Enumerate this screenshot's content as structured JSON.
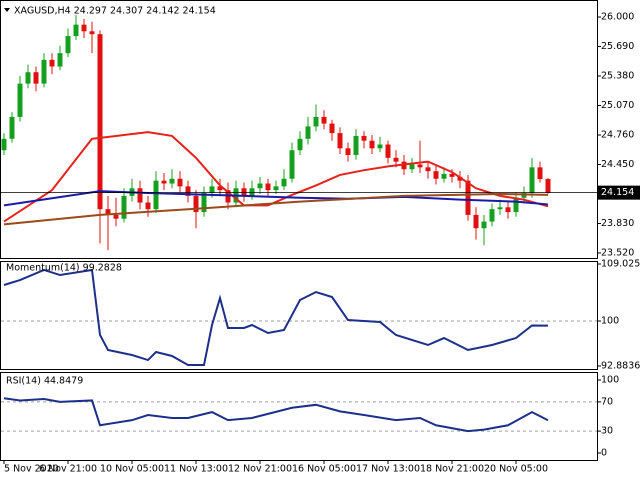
{
  "chart_data": [
    {
      "type": "candlestick",
      "title": "XAGUSD,H4  24.297 24.307 24.142 24.154",
      "categories": [
        "5 Nov 2020",
        null,
        null,
        null,
        null,
        null,
        null,
        null,
        "6 Nov 21:00",
        null,
        null,
        null,
        null,
        null,
        null,
        null,
        "10 Nov 05:00",
        null,
        null,
        null,
        null,
        null,
        null,
        null,
        "11 Nov 13:00",
        null,
        null,
        null,
        null,
        null,
        null,
        null,
        "12 Nov 21:00",
        null,
        null,
        null,
        null,
        null,
        null,
        null,
        "16 Nov 05:00",
        null,
        null,
        null,
        null,
        null,
        null,
        null,
        "17 Nov 13:00",
        null,
        null,
        null,
        null,
        null,
        null,
        null,
        "18 Nov 21:00",
        null,
        null,
        null,
        null,
        null,
        null,
        null,
        "20 Nov 05:00",
        null,
        null,
        null,
        null
      ],
      "open": [
        24.6,
        24.72,
        24.95,
        25.3,
        25.42,
        25.3,
        25.55,
        25.48,
        25.62,
        25.8,
        25.92,
        25.85,
        25.82,
        23.98,
        23.92,
        23.88,
        24.12,
        24.2,
        24.05,
        23.98,
        24.28,
        24.25,
        24.3,
        24.22,
        24.12,
        23.95,
        24.15,
        24.22,
        24.18,
        24.05,
        24.2,
        24.12,
        24.2,
        24.25,
        24.18,
        24.22,
        24.3,
        24.6,
        24.72,
        24.85,
        24.95,
        24.88,
        24.78,
        24.62,
        24.55,
        24.75,
        24.7,
        24.62,
        24.66,
        24.52,
        24.48,
        24.4,
        24.45,
        24.42,
        24.38,
        24.3,
        24.35,
        24.32,
        24.28,
        23.92,
        23.78,
        23.85,
        23.98,
        24.0,
        23.95,
        24.1,
        24.15,
        24.42,
        24.297
      ],
      "high": [
        24.78,
        25.0,
        25.38,
        25.5,
        25.48,
        25.62,
        25.62,
        25.7,
        25.88,
        26.02,
        25.98,
        25.95,
        25.86,
        24.12,
        24.1,
        24.2,
        24.3,
        24.28,
        24.12,
        24.38,
        24.36,
        24.4,
        24.38,
        24.28,
        24.18,
        24.22,
        24.3,
        24.3,
        24.26,
        24.28,
        24.26,
        24.28,
        24.32,
        24.3,
        24.28,
        24.4,
        24.68,
        24.8,
        24.95,
        25.08,
        25.02,
        24.92,
        24.84,
        24.68,
        24.82,
        24.8,
        24.76,
        24.74,
        24.7,
        24.6,
        24.55,
        24.52,
        24.7,
        24.48,
        24.44,
        24.42,
        24.4,
        24.38,
        24.34,
        24.0,
        23.92,
        24.04,
        24.08,
        24.06,
        24.16,
        24.22,
        24.52,
        24.48,
        24.307
      ],
      "low": [
        24.55,
        24.68,
        24.9,
        25.25,
        25.22,
        25.26,
        25.4,
        25.44,
        25.58,
        25.76,
        25.78,
        25.62,
        23.62,
        23.55,
        23.8,
        23.84,
        24.06,
        23.98,
        23.9,
        23.94,
        24.18,
        24.2,
        24.16,
        24.05,
        23.78,
        23.9,
        24.1,
        24.12,
        23.98,
        24.0,
        24.06,
        24.08,
        24.14,
        24.12,
        24.14,
        24.18,
        24.26,
        24.55,
        24.66,
        24.8,
        24.82,
        24.7,
        24.56,
        24.48,
        24.5,
        24.62,
        24.56,
        24.58,
        24.46,
        24.42,
        24.34,
        24.36,
        24.36,
        24.3,
        24.24,
        24.26,
        24.26,
        24.2,
        23.86,
        23.66,
        23.6,
        23.8,
        23.92,
        23.88,
        23.9,
        24.04,
        24.1,
        24.26,
        24.142
      ],
      "close": [
        24.72,
        24.95,
        25.3,
        25.42,
        25.3,
        25.55,
        25.48,
        25.62,
        25.8,
        25.92,
        25.85,
        25.82,
        23.98,
        23.92,
        23.88,
        24.12,
        24.2,
        24.05,
        23.98,
        24.28,
        24.25,
        24.3,
        24.22,
        24.12,
        23.95,
        24.15,
        24.22,
        24.18,
        24.05,
        24.2,
        24.12,
        24.2,
        24.25,
        24.18,
        24.22,
        24.3,
        24.6,
        24.72,
        24.85,
        24.95,
        24.88,
        24.78,
        24.62,
        24.55,
        24.75,
        24.7,
        24.62,
        24.66,
        24.52,
        24.48,
        24.4,
        24.45,
        24.42,
        24.38,
        24.3,
        24.35,
        24.32,
        24.28,
        23.92,
        23.78,
        23.85,
        23.98,
        24.0,
        23.95,
        24.1,
        24.15,
        24.42,
        24.297,
        24.154
      ],
      "up_color": "#14a01e",
      "down_color": "#e01010",
      "series": [
        {
          "color": "#e8201a",
          "x": [
            0,
            6,
            11,
            14,
            18,
            21,
            24,
            27,
            30,
            33,
            36,
            39,
            42,
            45,
            48,
            53,
            56,
            59,
            62,
            65,
            68
          ],
          "values": [
            23.85,
            24.18,
            24.72,
            24.75,
            24.79,
            24.75,
            24.52,
            24.23,
            24.02,
            24.02,
            24.13,
            24.23,
            24.34,
            24.39,
            24.43,
            24.48,
            24.37,
            24.2,
            24.12,
            24.08,
            24.01
          ]
        },
        {
          "color": "#1a1aa8",
          "x": [
            0,
            12,
            18,
            30,
            37,
            43,
            50,
            57,
            64,
            68
          ],
          "values": [
            24.02,
            24.17,
            24.15,
            24.12,
            24.1,
            24.09,
            24.11,
            24.08,
            24.06,
            24.03
          ]
        },
        {
          "color": "#9a4a1c",
          "x": [
            0,
            12,
            25,
            37,
            50,
            62,
            68
          ],
          "values": [
            23.82,
            23.92,
            23.99,
            24.06,
            24.12,
            24.14,
            24.13
          ]
        }
      ],
      "current_price": {
        "value": 24.154,
        "label": "24.154"
      },
      "ylim": [
        23.467,
        26.158
      ],
      "yticks": [
        {
          "value": 26.0,
          "label": "26.000"
        },
        {
          "value": 25.69,
          "label": "25.690"
        },
        {
          "value": 25.38,
          "label": "25.380"
        },
        {
          "value": 25.07,
          "label": "25.070"
        },
        {
          "value": 24.76,
          "label": "24.760"
        },
        {
          "value": 24.45,
          "label": "24.450"
        },
        {
          "value": 23.83,
          "label": "23.830"
        },
        {
          "value": 23.52,
          "label": "23.520"
        }
      ]
    },
    {
      "type": "line",
      "title": "Momentum(14) 99.2828",
      "color": "#1c2f8a",
      "x": [
        0,
        2,
        5,
        7,
        11,
        12,
        13,
        16,
        18,
        19,
        21,
        23,
        25,
        26,
        27,
        28,
        30,
        31,
        33,
        35,
        37,
        39,
        41,
        43,
        47,
        49,
        53,
        55,
        58,
        61,
        64,
        66,
        68
      ],
      "values": [
        105.7,
        106.49,
        108.08,
        107.28,
        108.08,
        97.79,
        95.42,
        94.62,
        93.83,
        95.1,
        94.47,
        93.04,
        93.04,
        99.37,
        103.64,
        98.9,
        98.9,
        99.37,
        98.11,
        98.58,
        103.33,
        104.59,
        103.8,
        100.16,
        99.85,
        97.79,
        96.21,
        97.31,
        95.42,
        96.21,
        97.31,
        99.3,
        99.2828
      ],
      "ylim": [
        92.8836,
        109.0251
      ],
      "yticks": [
        109.0251,
        100,
        92.8836
      ],
      "levels": [
        100
      ]
    },
    {
      "type": "line",
      "title": "RSI(14) 44.8479",
      "color": "#1c2f8a",
      "x": [
        0,
        2,
        5,
        7,
        11,
        12,
        16,
        18,
        21,
        23,
        26,
        28,
        31,
        36,
        39,
        42,
        45,
        49,
        52,
        54,
        58,
        60,
        63,
        66,
        68
      ],
      "values": [
        75,
        72,
        74,
        70,
        72,
        38,
        45,
        52,
        48,
        48,
        56,
        45,
        48,
        62,
        66,
        57,
        52,
        45,
        48,
        38,
        30,
        32,
        38,
        56,
        44.8479
      ],
      "ylim": [
        0,
        100
      ],
      "yticks": [
        100,
        70,
        30,
        0
      ],
      "levels": [
        70,
        30
      ]
    }
  ]
}
